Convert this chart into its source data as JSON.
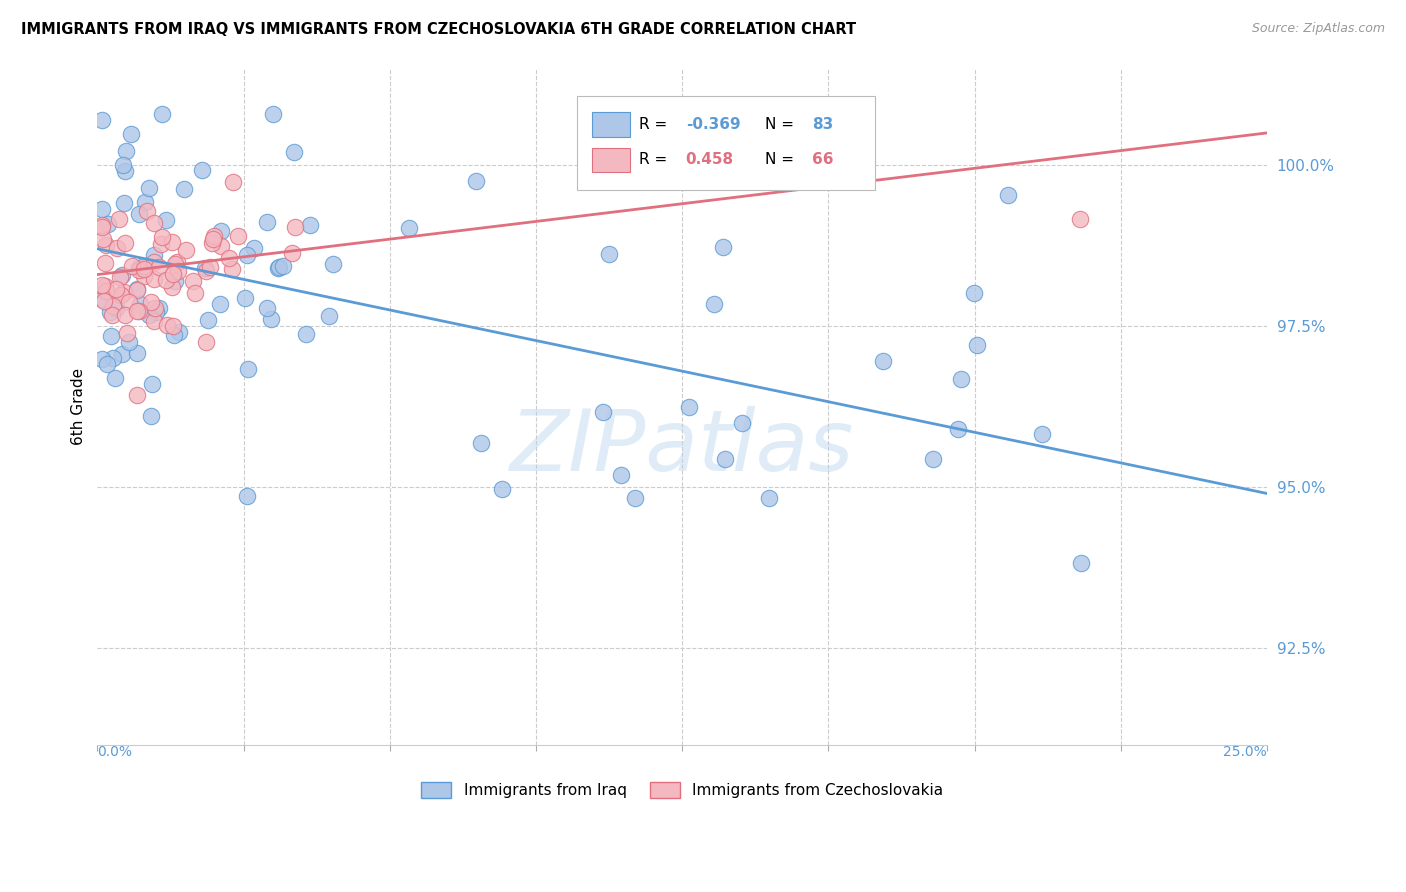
{
  "title": "IMMIGRANTS FROM IRAQ VS IMMIGRANTS FROM CZECHOSLOVAKIA 6TH GRADE CORRELATION CHART",
  "source": "Source: ZipAtlas.com",
  "ylabel": "6th Grade",
  "xlim": [
    0.0,
    25.0
  ],
  "ylim": [
    91.0,
    101.5
  ],
  "yticks": [
    92.5,
    95.0,
    97.5,
    100.0
  ],
  "ytick_labels": [
    "92.5%",
    "95.0%",
    "97.5%",
    "100.0%"
  ],
  "iraq_color": "#aec6e8",
  "iraq_edge_color": "#5b9bd5",
  "czech_color": "#f4b8c1",
  "czech_edge_color": "#e07080",
  "iraq_R": -0.369,
  "iraq_N": 83,
  "czech_R": 0.458,
  "czech_N": 66,
  "iraq_label": "Immigrants from Iraq",
  "czech_label": "Immigrants from Czechoslovakia",
  "watermark": "ZIPatlas",
  "line_iraq_x0": 0.0,
  "line_iraq_y0": 98.7,
  "line_iraq_x1": 25.0,
  "line_iraq_y1": 94.9,
  "line_czech_x0": 0.0,
  "line_czech_y0": 98.3,
  "line_czech_x1": 25.0,
  "line_czech_y1": 100.5
}
